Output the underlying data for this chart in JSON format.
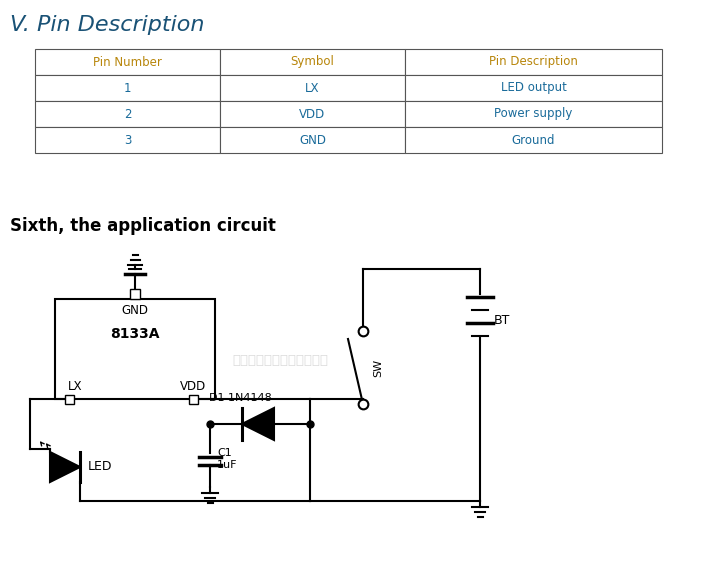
{
  "title_section": "V. Pin Description",
  "title_color": "#1a5276",
  "section2_title": "Sixth, the application circuit",
  "section2_color": "#000000",
  "table_headers": [
    "Pin Number",
    "Symbol",
    "Pin Description"
  ],
  "table_header_color": "#b8860b",
  "table_rows": [
    [
      "1",
      "LX",
      "LED output"
    ],
    [
      "2",
      "VDD",
      "Power supply"
    ],
    [
      "3",
      "GND",
      "Ground"
    ]
  ],
  "table_data_color": "#1a6b9a",
  "bg_color": "#ffffff",
  "line_color": "#000000",
  "watermark_text": "深圳市福瑞茈科技有限公司",
  "watermark_color": "#cccccc"
}
